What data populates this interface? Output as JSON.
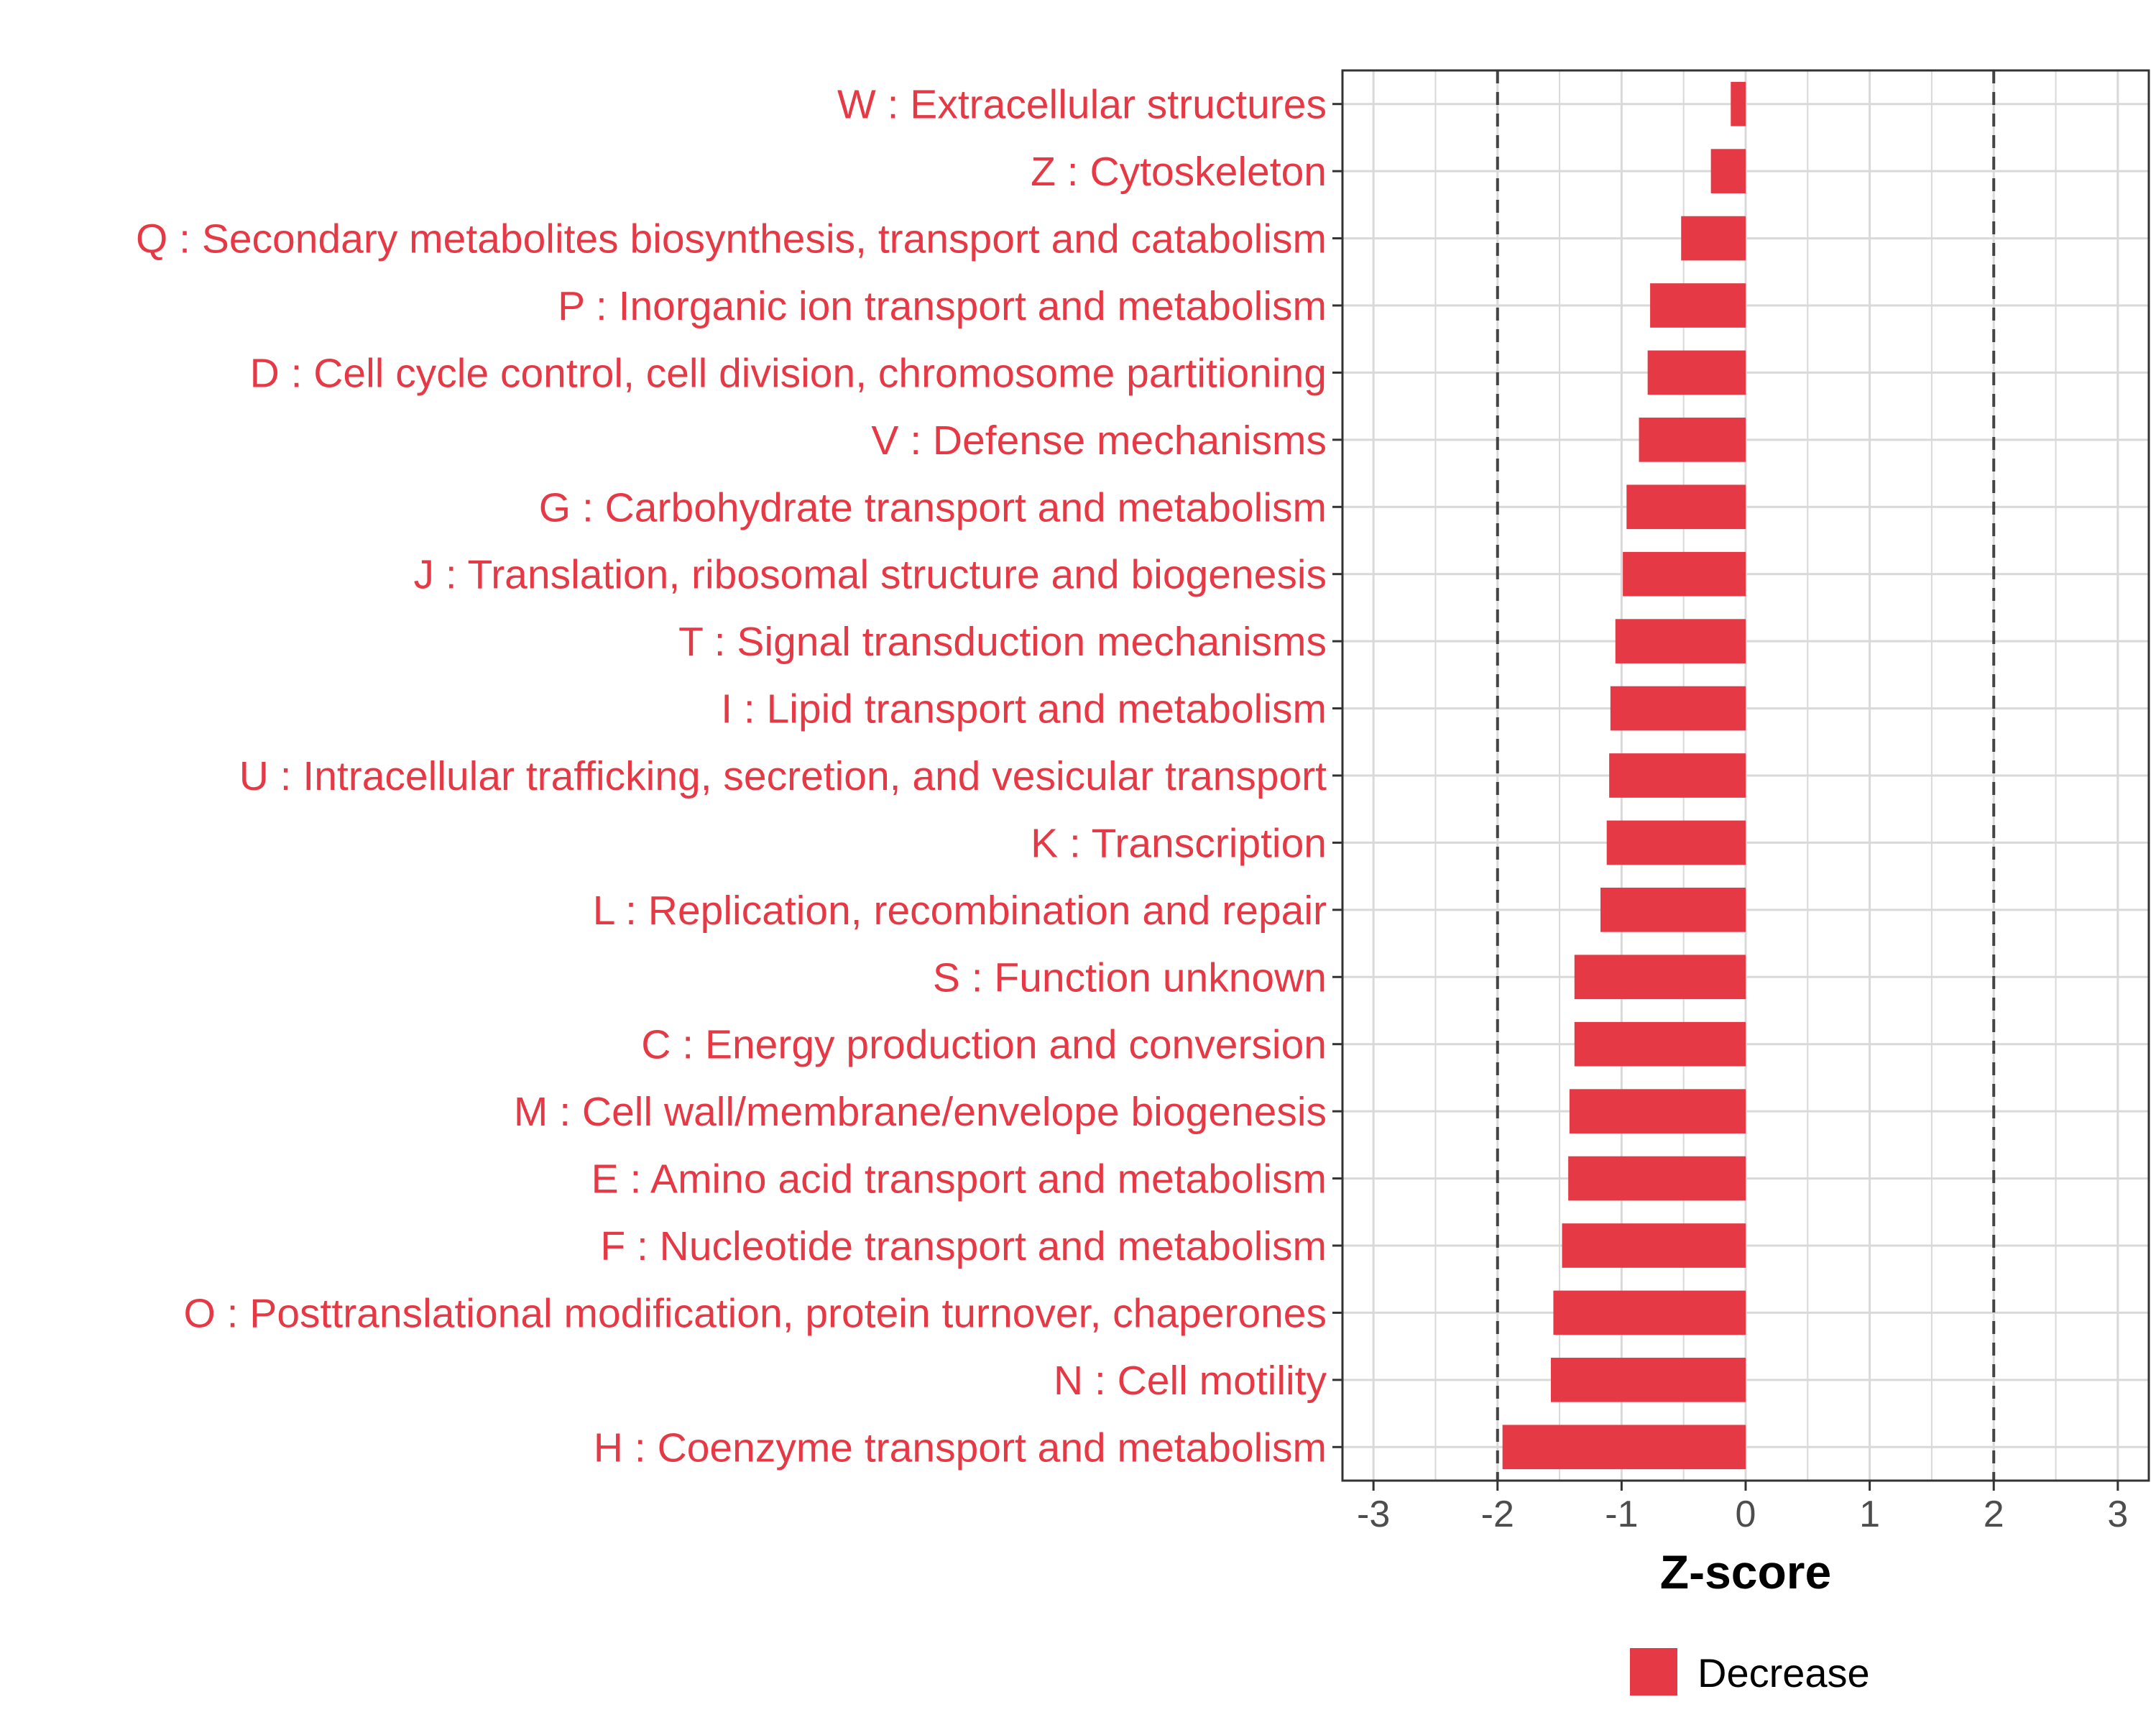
{
  "chart_data": {
    "type": "bar",
    "orientation": "horizontal",
    "title": "",
    "xlabel": "Z-score",
    "ylabel": "",
    "xlim": [
      -3.25,
      3.25
    ],
    "xticks": [
      -3,
      -2,
      -1,
      0,
      1,
      2,
      3
    ],
    "xtick_labels": [
      "-3",
      "-2",
      "-1",
      "0",
      "1",
      "2",
      "3"
    ],
    "reference_lines": [
      -2,
      2
    ],
    "grid": true,
    "categories": [
      "W : Extracellular structures",
      "Z : Cytoskeleton",
      "Q : Secondary metabolites biosynthesis, transport and catabolism",
      "P : Inorganic ion transport and metabolism",
      "D : Cell cycle control, cell division, chromosome partitioning",
      "V : Defense mechanisms",
      "G : Carbohydrate transport and metabolism",
      "J : Translation, ribosomal structure and biogenesis",
      "T : Signal transduction mechanisms",
      "I : Lipid transport and metabolism",
      "U : Intracellular trafficking, secretion, and vesicular transport",
      "K : Transcription",
      "L : Replication, recombination and repair",
      "S : Function unknown",
      "C : Energy production and conversion",
      "M : Cell wall/membrane/envelope biogenesis",
      "E : Amino acid transport and metabolism",
      "F : Nucleotide transport and metabolism",
      "O : Posttranslational modification, protein turnover, chaperones",
      "N : Cell motility",
      "H : Coenzyme transport and metabolism"
    ],
    "values": [
      -0.12,
      -0.28,
      -0.52,
      -0.77,
      -0.79,
      -0.86,
      -0.96,
      -0.99,
      -1.05,
      -1.09,
      -1.1,
      -1.12,
      -1.17,
      -1.38,
      -1.38,
      -1.42,
      -1.43,
      -1.48,
      -1.55,
      -1.57,
      -1.96
    ],
    "legend": {
      "position": "bottom",
      "entries": [
        {
          "label": "Decrease",
          "color": "#E63946"
        }
      ]
    },
    "colors": {
      "bar": "#E63946",
      "label": "#E63946",
      "grid": "#d9d9d9",
      "panel_border": "#333333",
      "ref_line": "#444444"
    }
  }
}
